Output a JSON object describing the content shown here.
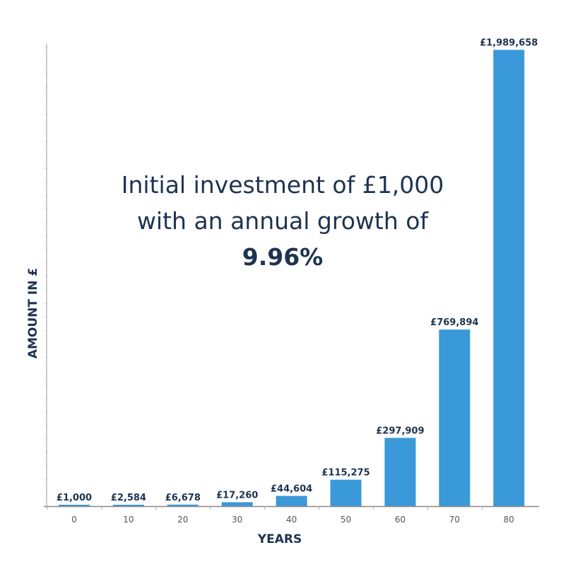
{
  "chart_data": {
    "type": "bar",
    "categories": [
      "0",
      "10",
      "20",
      "30",
      "40",
      "50",
      "60",
      "70",
      "80"
    ],
    "values": [
      1000,
      2584,
      6678,
      17260,
      44604,
      115275,
      297909,
      769894,
      1989658
    ],
    "data_labels": [
      "£1,000",
      "£2,584",
      "£6,678",
      "£17,260",
      "£44,604",
      "£115,275",
      "£297,909",
      "£769,894",
      "£1,989,658"
    ],
    "xlabel": "YEARS",
    "ylabel": "AMOUNT IN £",
    "ylim": [
      0,
      2000000
    ],
    "grid": false,
    "bar_color": "#3a99d8",
    "text_color": "#1e3350",
    "annotation": {
      "line1": "Initial investment of £1,000",
      "line2": "with an annual growth of",
      "line3": "9.96%"
    }
  }
}
